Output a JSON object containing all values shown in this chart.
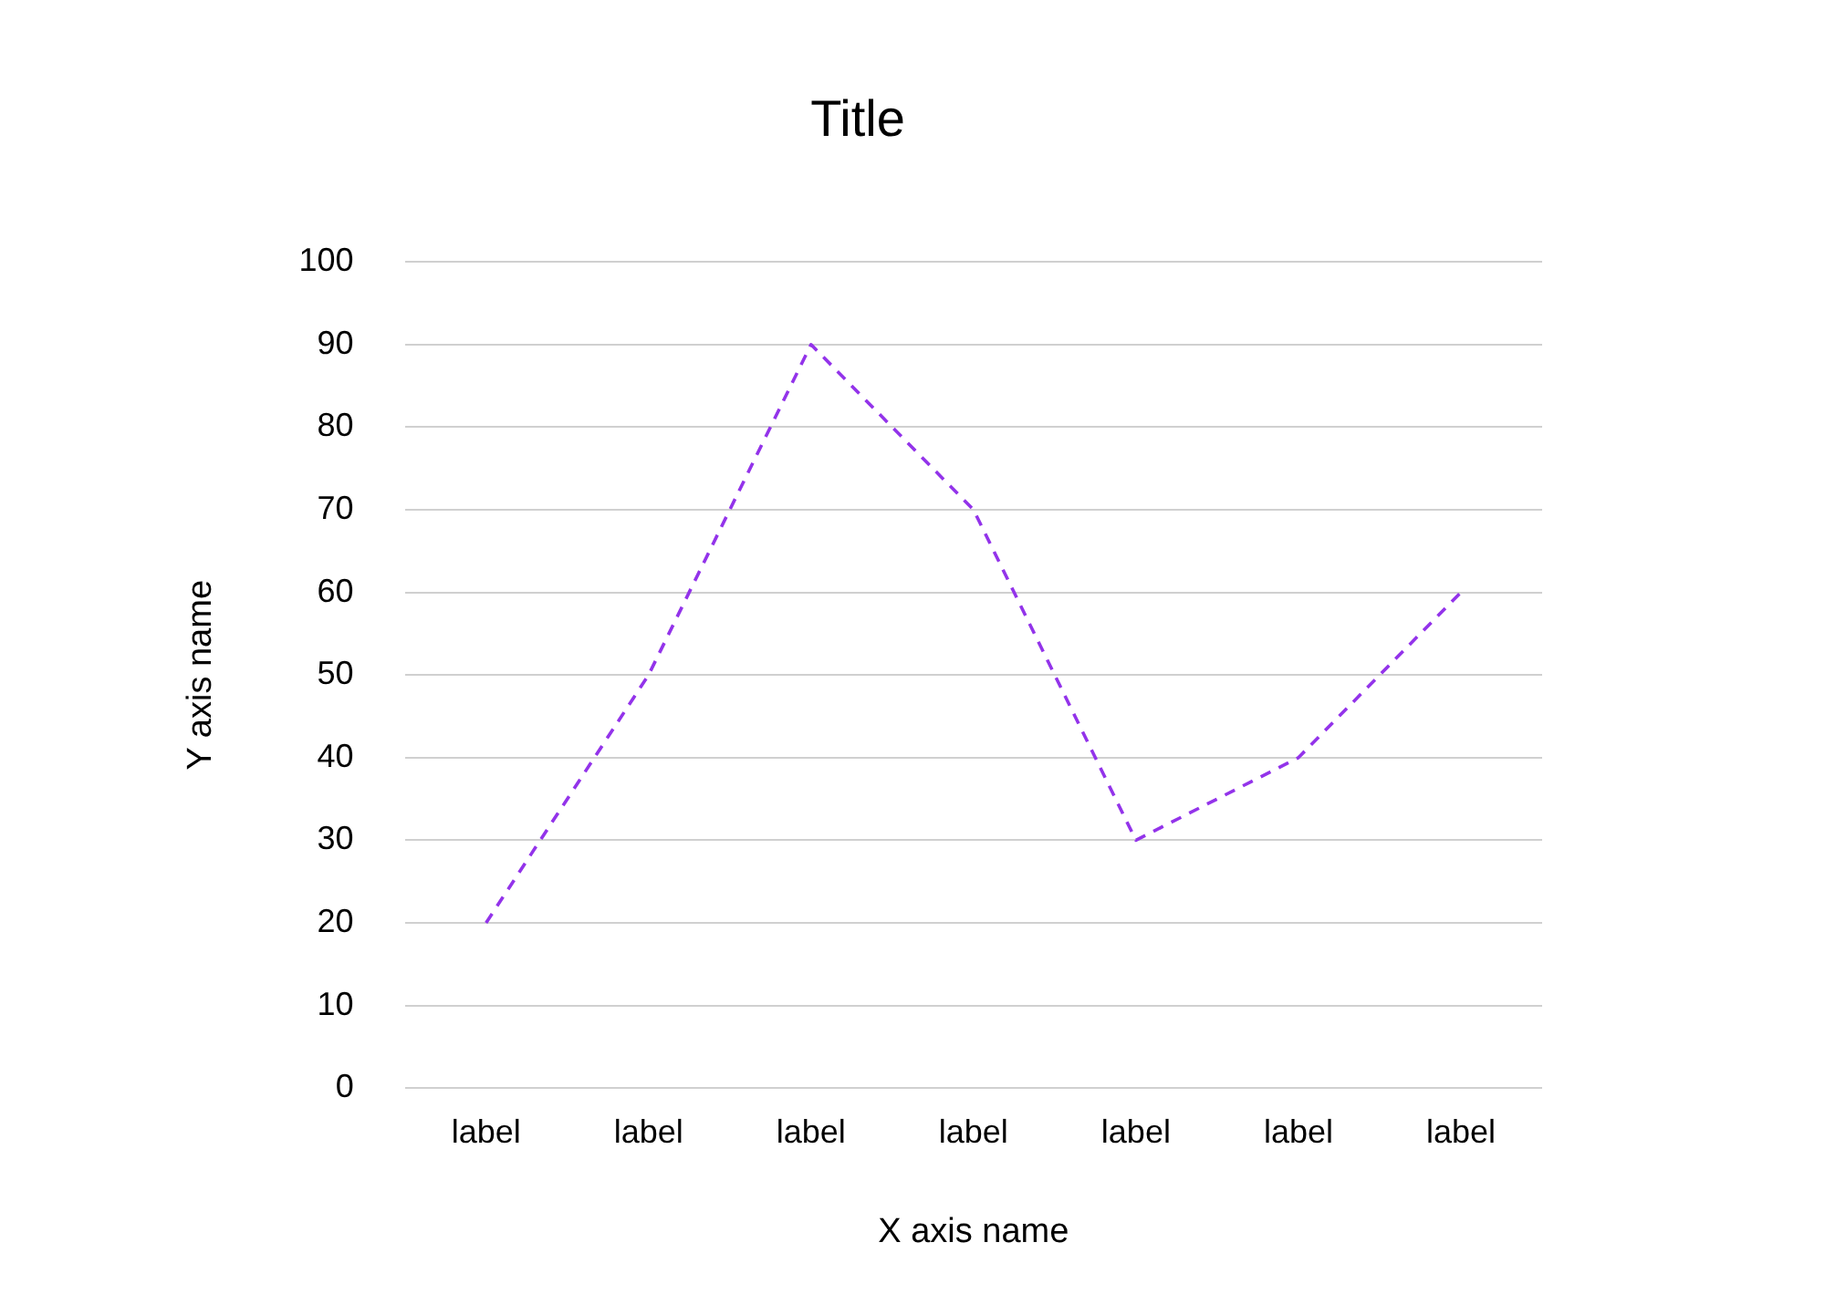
{
  "chart_data": {
    "type": "line",
    "title": "Title",
    "xlabel": "X axis name",
    "ylabel": "Y axis name",
    "categories": [
      "label",
      "label",
      "label",
      "label",
      "label",
      "label",
      "label"
    ],
    "series": [
      {
        "color": "#9333ea",
        "values": [
          20,
          50,
          90,
          70,
          30,
          40,
          60
        ]
      }
    ],
    "ylim": [
      0,
      100
    ],
    "yticks": [
      0,
      10,
      20,
      30,
      40,
      50,
      60,
      70,
      80,
      90,
      100
    ],
    "grid": "y",
    "legend": false,
    "marker": "none",
    "line_style": "dashed"
  }
}
